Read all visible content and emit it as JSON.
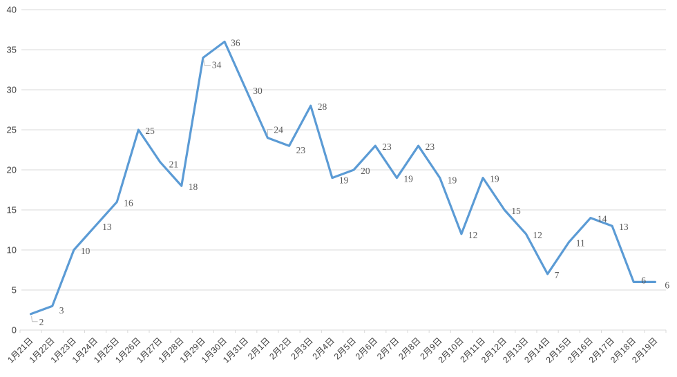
{
  "chart_data": {
    "type": "line",
    "title": "",
    "xlabel": "",
    "ylabel": "",
    "categories": [
      "1月21日",
      "1月22日",
      "1月23日",
      "1月24日",
      "1月25日",
      "1月26日",
      "1月27日",
      "1月28日",
      "1月29日",
      "1月30日",
      "1月31日",
      "2月1日",
      "2月2日",
      "2月3日",
      "2月4日",
      "2月5日",
      "2月6日",
      "2月7日",
      "2月8日",
      "2月9日",
      "2月10日",
      "2月11日",
      "2月12日",
      "2月13日",
      "2月14日",
      "2月15日",
      "2月16日",
      "2月17日",
      "2月18日",
      "2月19日"
    ],
    "values": [
      2,
      3,
      10,
      13,
      16,
      25,
      21,
      18,
      34,
      36,
      30,
      24,
      23,
      28,
      19,
      20,
      23,
      19,
      23,
      19,
      12,
      19,
      15,
      12,
      7,
      11,
      14,
      13,
      6,
      6
    ],
    "ylim": [
      0,
      40
    ],
    "yticks": [
      0,
      5,
      10,
      15,
      20,
      25,
      30,
      35,
      40
    ],
    "grid": true,
    "legend": "none",
    "show_data_labels": true,
    "colors": {
      "series_line": "#5b9bd5",
      "gridline": "#d9d9d9",
      "axis_line": "#d9d9d9",
      "tick_mark": "#d9d9d9",
      "leader_line": "#bfbfbf",
      "data_label": "#595959",
      "axis_label": "#3f3f3f",
      "background": "#ffffff"
    },
    "label_layout": {
      "default": {
        "dx": 10,
        "dy": 6
      },
      "overrides": {
        "0": {
          "dx": 12,
          "dy": 16,
          "leader": "down"
        },
        "1": {
          "dx": 10,
          "dy": 11
        },
        "6": {
          "dx": 13,
          "dy": 8
        },
        "8": {
          "dx": 13,
          "dy": 15,
          "leader": "down"
        },
        "9": {
          "dx": 9,
          "dy": 6
        },
        "11": {
          "dx": 9,
          "dy": -7,
          "leader": "up"
        },
        "12": {
          "dx": 10,
          "dy": 11
        },
        "14": {
          "dx": 10,
          "dy": 8
        },
        "19": {
          "dx": 11,
          "dy": 8
        },
        "28": {
          "dx": 11,
          "dy": 2
        },
        "29": {
          "dx": 14,
          "dy": 9
        }
      }
    }
  }
}
